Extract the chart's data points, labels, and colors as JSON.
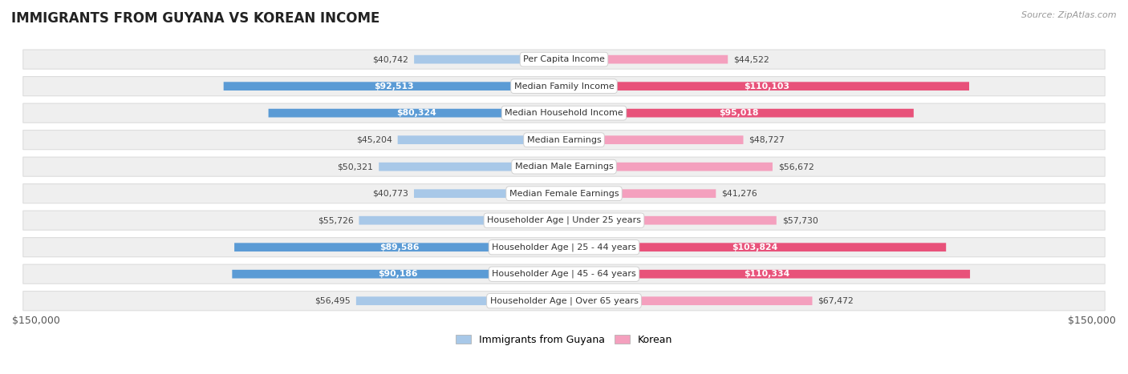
{
  "title": "IMMIGRANTS FROM GUYANA VS KOREAN INCOME",
  "source": "Source: ZipAtlas.com",
  "categories": [
    "Per Capita Income",
    "Median Family Income",
    "Median Household Income",
    "Median Earnings",
    "Median Male Earnings",
    "Median Female Earnings",
    "Householder Age | Under 25 years",
    "Householder Age | 25 - 44 years",
    "Householder Age | 45 - 64 years",
    "Householder Age | Over 65 years"
  ],
  "guyana_values": [
    40742,
    92513,
    80324,
    45204,
    50321,
    40773,
    55726,
    89586,
    90186,
    56495
  ],
  "korean_values": [
    44522,
    110103,
    95018,
    48727,
    56672,
    41276,
    57730,
    103824,
    110334,
    67472
  ],
  "guyana_labels": [
    "$40,742",
    "$92,513",
    "$80,324",
    "$45,204",
    "$50,321",
    "$40,773",
    "$55,726",
    "$89,586",
    "$90,186",
    "$56,495"
  ],
  "korean_labels": [
    "$44,522",
    "$110,103",
    "$95,018",
    "$48,727",
    "$56,672",
    "$41,276",
    "$57,730",
    "$103,824",
    "$110,334",
    "$67,472"
  ],
  "guyana_dark_rows": [
    1,
    2,
    7,
    8
  ],
  "korean_dark_rows": [
    1,
    2,
    7,
    8
  ],
  "guyana_color_light": "#a8c8e8",
  "guyana_color_dark": "#5b9bd5",
  "korean_color_light": "#f4a0be",
  "korean_color_dark": "#e8527a",
  "max_value": 150000,
  "cat_label_bg": "#ffffff",
  "cat_label_edge": "#cccccc",
  "row_bg": "#efefef",
  "row_border": "#dddddd",
  "legend_guyana": "Immigrants from Guyana",
  "legend_korean": "Korean",
  "x_label_left": "$150,000",
  "x_label_right": "$150,000",
  "background_color": "#ffffff",
  "title_color": "#222222",
  "source_color": "#999999",
  "label_dark_color": "#444444",
  "label_white_color": "#ffffff"
}
